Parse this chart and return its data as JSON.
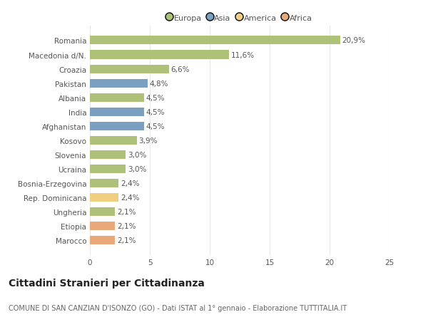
{
  "categories": [
    "Romania",
    "Macedonia d/N.",
    "Croazia",
    "Pakistan",
    "Albania",
    "India",
    "Afghanistan",
    "Kosovo",
    "Slovenia",
    "Ucraina",
    "Bosnia-Erzegovina",
    "Rep. Dominicana",
    "Ungheria",
    "Etiopia",
    "Marocco"
  ],
  "values": [
    20.9,
    11.6,
    6.6,
    4.8,
    4.5,
    4.5,
    4.5,
    3.9,
    3.0,
    3.0,
    2.4,
    2.4,
    2.1,
    2.1,
    2.1
  ],
  "labels": [
    "20,9%",
    "11,6%",
    "6,6%",
    "4,8%",
    "4,5%",
    "4,5%",
    "4,5%",
    "3,9%",
    "3,0%",
    "3,0%",
    "2,4%",
    "2,4%",
    "2,1%",
    "2,1%",
    "2,1%"
  ],
  "continent": [
    "Europa",
    "Europa",
    "Europa",
    "Asia",
    "Europa",
    "Asia",
    "Asia",
    "Europa",
    "Europa",
    "Europa",
    "Europa",
    "America",
    "Europa",
    "Africa",
    "Africa"
  ],
  "colors": {
    "Europa": "#adc178",
    "Asia": "#7a9fc0",
    "America": "#f0d080",
    "Africa": "#e8a878"
  },
  "xlim": [
    0,
    25
  ],
  "xticks": [
    0,
    5,
    10,
    15,
    20,
    25
  ],
  "title": "Cittadini Stranieri per Cittadinanza",
  "subtitle": "COMUNE DI SAN CANZIAN D'ISONZO (GO) - Dati ISTAT al 1° gennaio - Elaborazione TUTTITALIA.IT",
  "background_color": "#ffffff",
  "plot_bg_color": "#ffffff",
  "grid_color": "#e8e8e8",
  "bar_height": 0.6,
  "title_fontsize": 10,
  "subtitle_fontsize": 7,
  "label_fontsize": 7.5,
  "tick_fontsize": 7.5,
  "legend_fontsize": 8,
  "legend_order": [
    "Europa",
    "Asia",
    "America",
    "Africa"
  ]
}
